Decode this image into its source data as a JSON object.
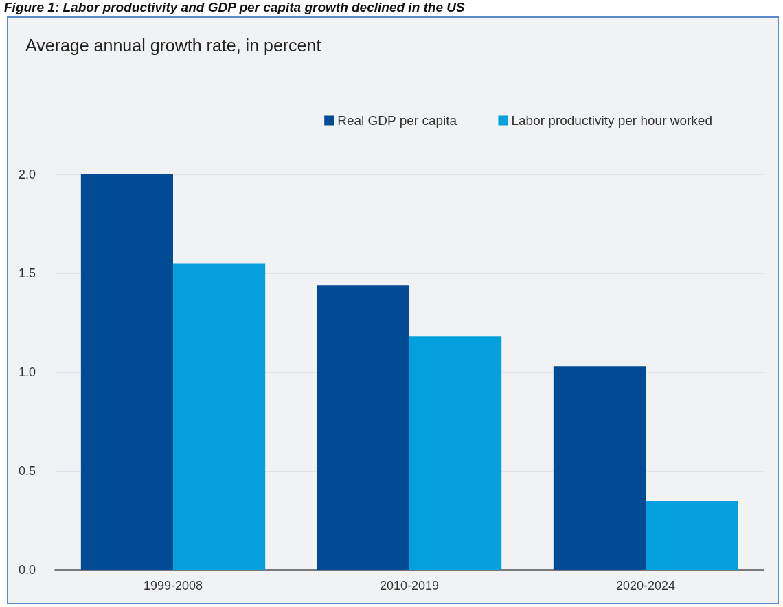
{
  "chart_data": {
    "type": "bar",
    "title": "Figure 1: Labor productivity and GDP per capita growth declined in the US",
    "subtitle": "Average annual growth rate, in percent",
    "categories": [
      "1999-2008",
      "2010-2019",
      "2020-2024"
    ],
    "series": [
      {
        "name": "Real GDP per capita",
        "color": "#014a94",
        "values": [
          2.0,
          1.44,
          1.03
        ]
      },
      {
        "name": "Labor productivity per hour worked",
        "color": "#049fdd",
        "values": [
          1.55,
          1.18,
          0.35
        ]
      }
    ],
    "ylim": [
      0,
      2
    ],
    "yticks": [
      {
        "value": 0,
        "label": "0.0"
      },
      {
        "value": 0.5,
        "label": "0.5"
      },
      {
        "value": 1,
        "label": "1.0"
      },
      {
        "value": 1.5,
        "label": "1.5"
      },
      {
        "value": 2,
        "label": "2.0"
      }
    ],
    "grid": "y",
    "legend": "top right"
  }
}
